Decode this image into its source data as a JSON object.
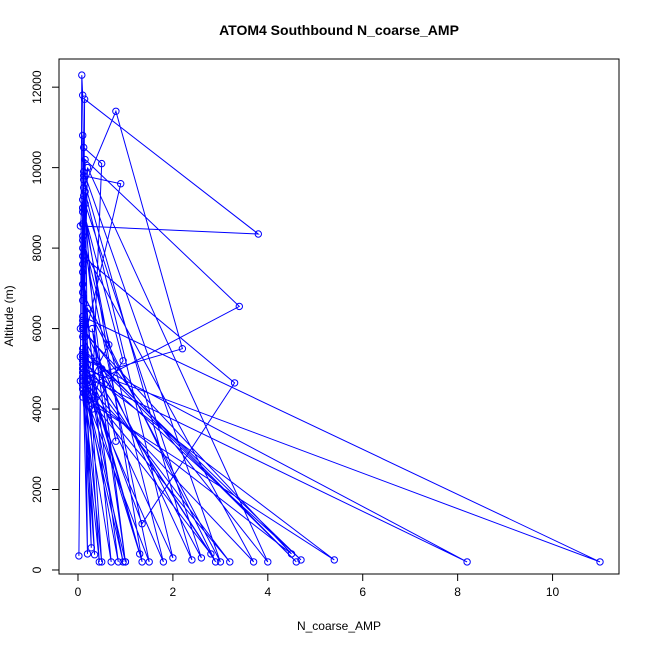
{
  "chart_data": {
    "type": "line",
    "title": "ATOM4 Southbound N_coarse_AMP",
    "xlabel": "N_coarse_AMP",
    "ylabel": "Altitude (m)",
    "xlim": [
      -0.4,
      11.4
    ],
    "ylim": [
      -100,
      12700
    ],
    "xticks": [
      0,
      2,
      4,
      6,
      8,
      10
    ],
    "yticks": [
      0,
      2000,
      4000,
      6000,
      8000,
      10000,
      12000
    ],
    "grid": false,
    "legend": "none",
    "series": [
      {
        "color": "#0000ff",
        "marker": "open-circle",
        "points": [
          [
            0.02,
            350
          ],
          [
            0.05,
            4700
          ],
          [
            0.08,
            12300
          ],
          [
            0.1,
            11800
          ],
          [
            0.12,
            9800
          ],
          [
            0.9,
            9600
          ],
          [
            0.15,
            5800
          ],
          [
            0.28,
            550
          ],
          [
            0.1,
            4900
          ],
          [
            0.12,
            10500
          ],
          [
            0.5,
            10100
          ],
          [
            0.3,
            4300
          ],
          [
            0.95,
            200
          ],
          [
            0.1,
            4600
          ],
          [
            0.14,
            11700
          ],
          [
            3.8,
            8350
          ],
          [
            0.05,
            8550
          ],
          [
            0.1,
            9200
          ],
          [
            1.35,
            200
          ],
          [
            0.2,
            5100
          ],
          [
            0.15,
            10200
          ],
          [
            3.4,
            6550
          ],
          [
            0.1,
            4500
          ],
          [
            0.35,
            380
          ],
          [
            0.1,
            6200
          ],
          [
            0.12,
            9500
          ],
          [
            0.8,
            11400
          ],
          [
            2.2,
            5500
          ],
          [
            0.15,
            4800
          ],
          [
            8.2,
            200
          ],
          [
            0.05,
            5300
          ],
          [
            0.1,
            9000
          ],
          [
            0.65,
            5600
          ],
          [
            0.12,
            4400
          ],
          [
            4.5,
            400
          ],
          [
            0.05,
            6000
          ],
          [
            0.1,
            7800
          ],
          [
            3.3,
            4650
          ],
          [
            1.35,
            1150
          ],
          [
            0.12,
            5000
          ],
          [
            11.0,
            200
          ],
          [
            0.1,
            6300
          ],
          [
            0.12,
            9300
          ],
          [
            0.4,
            5200
          ],
          [
            4.6,
            200
          ],
          [
            0.15,
            5400
          ],
          [
            0.1,
            8900
          ],
          [
            0.2,
            4200
          ],
          [
            5.4,
            250
          ],
          [
            0.1,
            5000
          ],
          [
            0.1,
            8600
          ],
          [
            1.0,
            200
          ],
          [
            0.1,
            4800
          ],
          [
            0.15,
            9400
          ],
          [
            2.0,
            300
          ],
          [
            0.1,
            5200
          ],
          [
            0.1,
            7400
          ],
          [
            0.5,
            200
          ],
          [
            0.1,
            4700
          ],
          [
            0.12,
            9700
          ],
          [
            2.4,
            250
          ],
          [
            0.1,
            6100
          ],
          [
            0.15,
            4400
          ],
          [
            2.8,
            400
          ],
          [
            0.1,
            5300
          ],
          [
            0.1,
            7100
          ],
          [
            0.85,
            200
          ],
          [
            0.1,
            4900
          ],
          [
            0.12,
            9900
          ],
          [
            3.0,
            200
          ],
          [
            0.2,
            6500
          ],
          [
            0.1,
            4600
          ],
          [
            3.2,
            200
          ],
          [
            0.1,
            5000
          ],
          [
            0.1,
            8200
          ],
          [
            1.5,
            200
          ],
          [
            0.1,
            4500
          ],
          [
            0.2,
            10000
          ],
          [
            4.0,
            200
          ],
          [
            0.1,
            6000
          ],
          [
            0.1,
            5200
          ],
          [
            4.7,
            250
          ],
          [
            0.1,
            5500
          ],
          [
            0.1,
            7600
          ],
          [
            0.7,
            200
          ],
          [
            0.1,
            4600
          ],
          [
            0.15,
            9100
          ],
          [
            2.6,
            300
          ],
          [
            0.1,
            5800
          ],
          [
            0.1,
            5000
          ],
          [
            1.3,
            400
          ],
          [
            0.1,
            5400
          ],
          [
            0.1,
            8000
          ],
          [
            3.7,
            200
          ],
          [
            0.1,
            4700
          ],
          [
            0.1,
            6700
          ],
          [
            0.45,
            200
          ],
          [
            0.1,
            4300
          ],
          [
            0.1,
            10800
          ],
          [
            0.2,
            400
          ],
          [
            0.1,
            5100
          ],
          [
            0.1,
            8300
          ],
          [
            1.8,
            200
          ],
          [
            0.1,
            4800
          ],
          [
            0.1,
            6900
          ],
          [
            2.9,
            200
          ],
          [
            0.1,
            5300
          ],
          [
            0.1,
            9000
          ],
          [
            0.95,
            5200
          ],
          [
            0.3,
            4000
          ],
          [
            0.5,
            5000
          ],
          [
            0.8,
            3200
          ],
          [
            0.3,
            6000
          ],
          [
            1.0,
            200
          ]
        ]
      }
    ]
  }
}
